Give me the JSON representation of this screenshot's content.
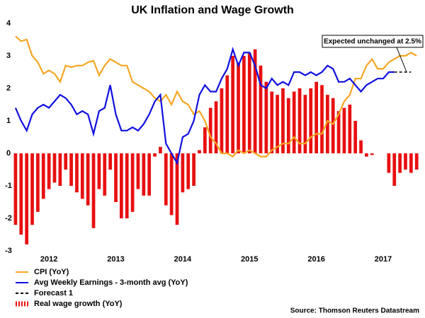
{
  "chart_data": {
    "type": "bar-line",
    "title": "UK Inflation and Wage Growth",
    "annotation": "Expected unchanged at 2.5%",
    "source": "Source: Thomson Reuters Datastream",
    "categories": [
      null,
      null,
      null,
      null,
      null,
      null,
      "2012",
      null,
      null,
      null,
      null,
      null,
      null,
      null,
      null,
      null,
      null,
      null,
      "2013",
      null,
      null,
      null,
      null,
      null,
      null,
      null,
      null,
      null,
      null,
      null,
      "2014",
      null,
      null,
      null,
      null,
      null,
      null,
      null,
      null,
      null,
      null,
      null,
      "2015",
      null,
      null,
      null,
      null,
      null,
      null,
      null,
      null,
      null,
      null,
      null,
      "2016",
      null,
      null,
      null,
      null,
      null,
      null,
      null,
      null,
      null,
      null,
      null,
      "2017",
      null,
      null,
      null,
      null,
      null,
      null,
      null
    ],
    "ylim": [
      -3,
      4
    ],
    "yticks": [
      -3,
      -2,
      -1,
      0,
      1,
      2,
      3,
      4
    ],
    "grid": false,
    "series": [
      {
        "name": "CPI (YoY)",
        "type": "line",
        "color": "#f5a623",
        "dash": false,
        "values": [
          3.6,
          3.45,
          3.5,
          3.0,
          2.8,
          2.45,
          2.55,
          2.45,
          2.2,
          2.7,
          2.65,
          2.7,
          2.7,
          2.8,
          2.85,
          2.4,
          2.7,
          2.9,
          2.8,
          2.7,
          2.7,
          2.2,
          2.1,
          2.0,
          1.9,
          1.7,
          1.6,
          1.8,
          1.5,
          1.9,
          1.6,
          1.5,
          1.2,
          1.3,
          1.0,
          0.5,
          0.3,
          0.0,
          0.0,
          -0.1,
          0.1,
          0.0,
          0.1,
          0.0,
          -0.1,
          -0.1,
          0.1,
          0.2,
          0.3,
          0.3,
          0.5,
          0.3,
          0.3,
          0.5,
          0.6,
          0.6,
          1.0,
          0.9,
          1.2,
          1.6,
          1.8,
          2.3,
          2.3,
          2.7,
          2.9,
          2.6,
          2.6,
          2.8,
          2.9,
          3.0,
          3.0,
          3.1,
          3.0,
          null
        ]
      },
      {
        "name": "Avg Weekly Earnings - 3-month avg (YoY)",
        "type": "line",
        "color": "#1010e0",
        "dash": false,
        "values": [
          1.4,
          1.0,
          0.7,
          1.2,
          1.4,
          1.5,
          1.4,
          1.6,
          1.8,
          1.7,
          1.5,
          1.2,
          1.3,
          1.2,
          0.6,
          1.3,
          1.4,
          2.1,
          1.2,
          0.7,
          0.7,
          0.8,
          0.7,
          0.9,
          1.2,
          1.6,
          1.8,
          0.3,
          0.0,
          -0.3,
          0.5,
          0.6,
          1.0,
          1.8,
          2.1,
          1.9,
          1.9,
          2.3,
          2.6,
          3.2,
          2.7,
          3.1,
          3.1,
          2.7,
          2.1,
          2.0,
          2.3,
          2.1,
          2.2,
          2.1,
          2.5,
          2.5,
          2.4,
          2.5,
          2.4,
          2.5,
          2.7,
          2.6,
          2.2,
          2.2,
          2.3,
          2.1,
          1.9,
          2.1,
          2.2,
          2.3,
          2.3,
          2.5,
          2.5,
          null,
          null,
          null,
          null,
          null
        ]
      },
      {
        "name": "Forecast 1",
        "type": "line",
        "color": "#000000",
        "dash": true,
        "values": [
          null,
          null,
          null,
          null,
          null,
          null,
          null,
          null,
          null,
          null,
          null,
          null,
          null,
          null,
          null,
          null,
          null,
          null,
          null,
          null,
          null,
          null,
          null,
          null,
          null,
          null,
          null,
          null,
          null,
          null,
          null,
          null,
          null,
          null,
          null,
          null,
          null,
          null,
          null,
          null,
          null,
          null,
          null,
          null,
          null,
          null,
          null,
          null,
          null,
          null,
          null,
          null,
          null,
          null,
          null,
          null,
          null,
          null,
          null,
          null,
          null,
          null,
          null,
          null,
          null,
          null,
          null,
          null,
          2.5,
          2.5,
          2.5,
          2.5,
          null,
          null
        ]
      },
      {
        "name": "Real wage growth (YoY)",
        "type": "bar",
        "color": "#e81010",
        "dash": false,
        "values": [
          -2.2,
          -2.5,
          -2.8,
          -2.2,
          -1.8,
          -1.4,
          -1.1,
          -0.9,
          -1.0,
          -0.5,
          -1.0,
          -1.2,
          -1.4,
          -1.6,
          -2.3,
          -1.1,
          -1.3,
          -0.5,
          -1.5,
          -2.0,
          -2.0,
          -1.8,
          -1.1,
          -1.3,
          -1.3,
          -0.1,
          0.2,
          -1.6,
          -1.9,
          -2.2,
          -1.2,
          -1.1,
          -1.0,
          0.1,
          0.8,
          1.4,
          1.6,
          2.0,
          2.4,
          3.0,
          2.8,
          3.0,
          3.1,
          3.2,
          2.7,
          2.2,
          1.9,
          1.8,
          2.0,
          1.7,
          1.9,
          2.0,
          1.8,
          2.0,
          2.2,
          2.1,
          1.8,
          1.7,
          1.3,
          1.4,
          1.5,
          1.0,
          0.4,
          -0.1,
          -0.05,
          null,
          null,
          -0.6,
          -1.0,
          -0.6,
          -0.5,
          -0.6,
          -0.5,
          null
        ]
      }
    ]
  }
}
